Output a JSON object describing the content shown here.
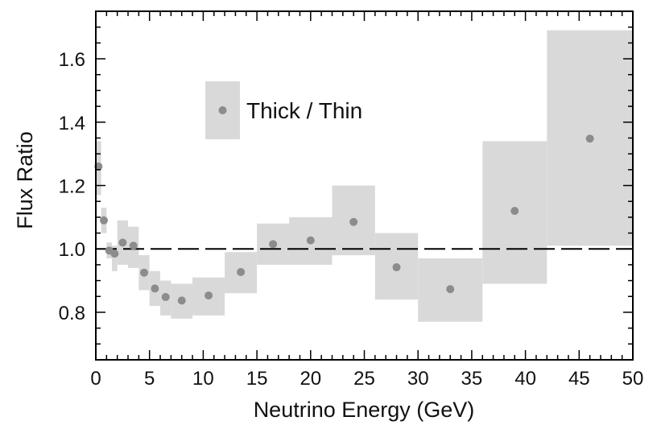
{
  "chart_data": {
    "type": "scatter",
    "xlabel": "Neutrino Energy (GeV)",
    "ylabel": "Flux Ratio",
    "xlim": [
      0,
      50
    ],
    "ylim": [
      0.65,
      1.75
    ],
    "x_ticks": [
      0,
      5,
      10,
      15,
      20,
      25,
      30,
      35,
      40,
      45,
      50
    ],
    "x_tick_labels": [
      "0",
      "5",
      "10",
      "15",
      "20",
      "25",
      "30",
      "35",
      "40",
      "45",
      "50"
    ],
    "y_ticks": [
      0.8,
      1.0,
      1.2,
      1.4,
      1.6
    ],
    "y_tick_labels": [
      "0.8",
      "1.0",
      "1.2",
      "1.4",
      "1.6"
    ],
    "reference_line": {
      "y": 1.0,
      "style": "dashed"
    },
    "legend": {
      "location": "upper-left",
      "entries": [
        "Thick / Thin"
      ]
    },
    "colors": {
      "marker": "#8c8c8c",
      "error_band": "#d9d9d9",
      "axis": "#000000"
    },
    "series": [
      {
        "name": "Thick / Thin",
        "points": [
          {
            "x": 0.25,
            "y": 1.26,
            "x_low": 0.0,
            "x_high": 0.5,
            "y_low": 1.17,
            "y_high": 1.34
          },
          {
            "x": 0.75,
            "y": 1.09,
            "x_low": 0.5,
            "x_high": 1.0,
            "y_low": 1.05,
            "y_high": 1.13
          },
          {
            "x": 1.25,
            "y": 0.995,
            "x_low": 1.0,
            "x_high": 1.5,
            "y_low": 0.97,
            "y_high": 1.02
          },
          {
            "x": 1.75,
            "y": 0.985,
            "x_low": 1.5,
            "x_high": 2.0,
            "y_low": 0.93,
            "y_high": 1.01
          },
          {
            "x": 2.5,
            "y": 1.02,
            "x_low": 2.0,
            "x_high": 3.0,
            "y_low": 0.95,
            "y_high": 1.09
          },
          {
            "x": 3.5,
            "y": 1.01,
            "x_low": 3.0,
            "x_high": 4.0,
            "y_low": 0.94,
            "y_high": 1.07
          },
          {
            "x": 4.5,
            "y": 0.925,
            "x_low": 4.0,
            "x_high": 5.0,
            "y_low": 0.87,
            "y_high": 0.98
          },
          {
            "x": 5.5,
            "y": 0.875,
            "x_low": 5.0,
            "x_high": 6.0,
            "y_low": 0.82,
            "y_high": 0.93
          },
          {
            "x": 6.5,
            "y": 0.848,
            "x_low": 6.0,
            "x_high": 7.0,
            "y_low": 0.79,
            "y_high": 0.9
          },
          {
            "x": 8.0,
            "y": 0.837,
            "x_low": 7.0,
            "x_high": 9.0,
            "y_low": 0.78,
            "y_high": 0.89
          },
          {
            "x": 10.5,
            "y": 0.853,
            "x_low": 9.0,
            "x_high": 12.0,
            "y_low": 0.79,
            "y_high": 0.91
          },
          {
            "x": 13.5,
            "y": 0.927,
            "x_low": 12.0,
            "x_high": 15.0,
            "y_low": 0.86,
            "y_high": 0.99
          },
          {
            "x": 16.5,
            "y": 1.015,
            "x_low": 15.0,
            "x_high": 18.0,
            "y_low": 0.95,
            "y_high": 1.08
          },
          {
            "x": 20.0,
            "y": 1.027,
            "x_low": 18.0,
            "x_high": 22.0,
            "y_low": 0.95,
            "y_high": 1.1
          },
          {
            "x": 24.0,
            "y": 1.085,
            "x_low": 22.0,
            "x_high": 26.0,
            "y_low": 0.98,
            "y_high": 1.2
          },
          {
            "x": 28.0,
            "y": 0.942,
            "x_low": 26.0,
            "x_high": 30.0,
            "y_low": 0.84,
            "y_high": 1.05
          },
          {
            "x": 33.0,
            "y": 0.873,
            "x_low": 30.0,
            "x_high": 36.0,
            "y_low": 0.77,
            "y_high": 0.97
          },
          {
            "x": 39.0,
            "y": 1.12,
            "x_low": 36.0,
            "x_high": 42.0,
            "y_low": 0.89,
            "y_high": 1.34
          },
          {
            "x": 46.0,
            "y": 1.348,
            "x_low": 42.0,
            "x_high": 50.0,
            "y_low": 1.01,
            "y_high": 1.69
          }
        ]
      }
    ]
  }
}
